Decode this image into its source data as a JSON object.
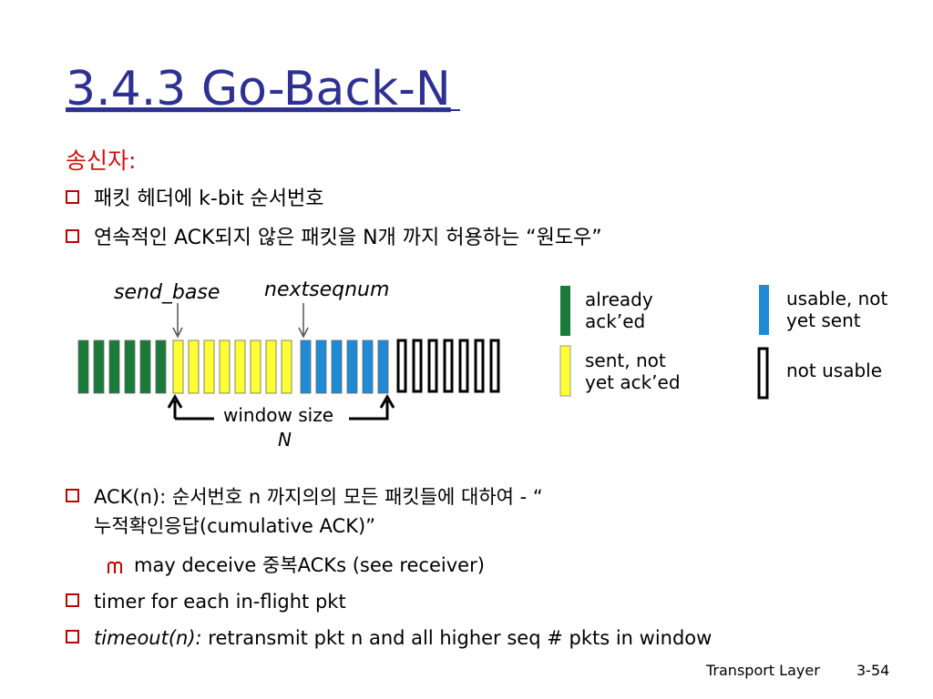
{
  "title": "3.4.3 Go-Back-N",
  "heading": "송신자:",
  "bullets_top": [
    "패킷 헤더에 k-bit 순서번호",
    "연속적인 ACK되지 않은 패킷을 N개 까지 허용하는 “원도우”"
  ],
  "diagram": {
    "send_base": "send_base",
    "nextseqnum": "nextseqnum",
    "window_size": "window size",
    "n": "N",
    "legend": [
      {
        "lines": [
          "already",
          "ack’ed"
        ]
      },
      {
        "lines": [
          "sent, not",
          "yet ack’ed"
        ]
      },
      {
        "lines": [
          "usable, not",
          "yet sent"
        ]
      },
      {
        "lines": [
          "not usable"
        ]
      }
    ]
  },
  "bullets_bottom": [
    {
      "lines": [
        "ACK(n): 순서번호 n 까지의의 모든 패킷들에 대하여 - “",
        "누적확인응답(cumulative ACK)”"
      ],
      "sub": "may deceive 중복ACKs (see receiver)"
    },
    {
      "text": "timer for each in-flight pkt"
    },
    {
      "italic": "timeout(n):",
      "text": " retransmit pkt n and all higher seq # pkts in window"
    }
  ],
  "footer": {
    "section": "Transport Layer",
    "page": "3-54"
  }
}
